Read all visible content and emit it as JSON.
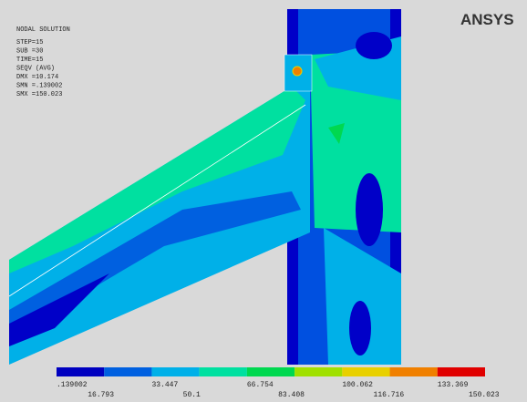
{
  "header": {
    "lines": [
      "NODAL SOLUTION",
      "STEP=15",
      "SUB =30",
      "TIME=15",
      "SEQV      (AVG)",
      "DMX =10.174",
      "SMN =.139002",
      "SMX =150.023"
    ]
  },
  "logo": "ANSYS",
  "legend": {
    "labels": [
      ".139002",
      "16.793",
      "33.447",
      "50.1",
      "66.754",
      "83.408",
      "100.062",
      "116.716",
      "133.369",
      "150.023"
    ],
    "colors": [
      "#0000c0",
      "#0060e0",
      "#00b0e8",
      "#00e0a0",
      "#00d850",
      "#a0e000",
      "#e8d000",
      "#f08000",
      "#e00000"
    ]
  }
}
